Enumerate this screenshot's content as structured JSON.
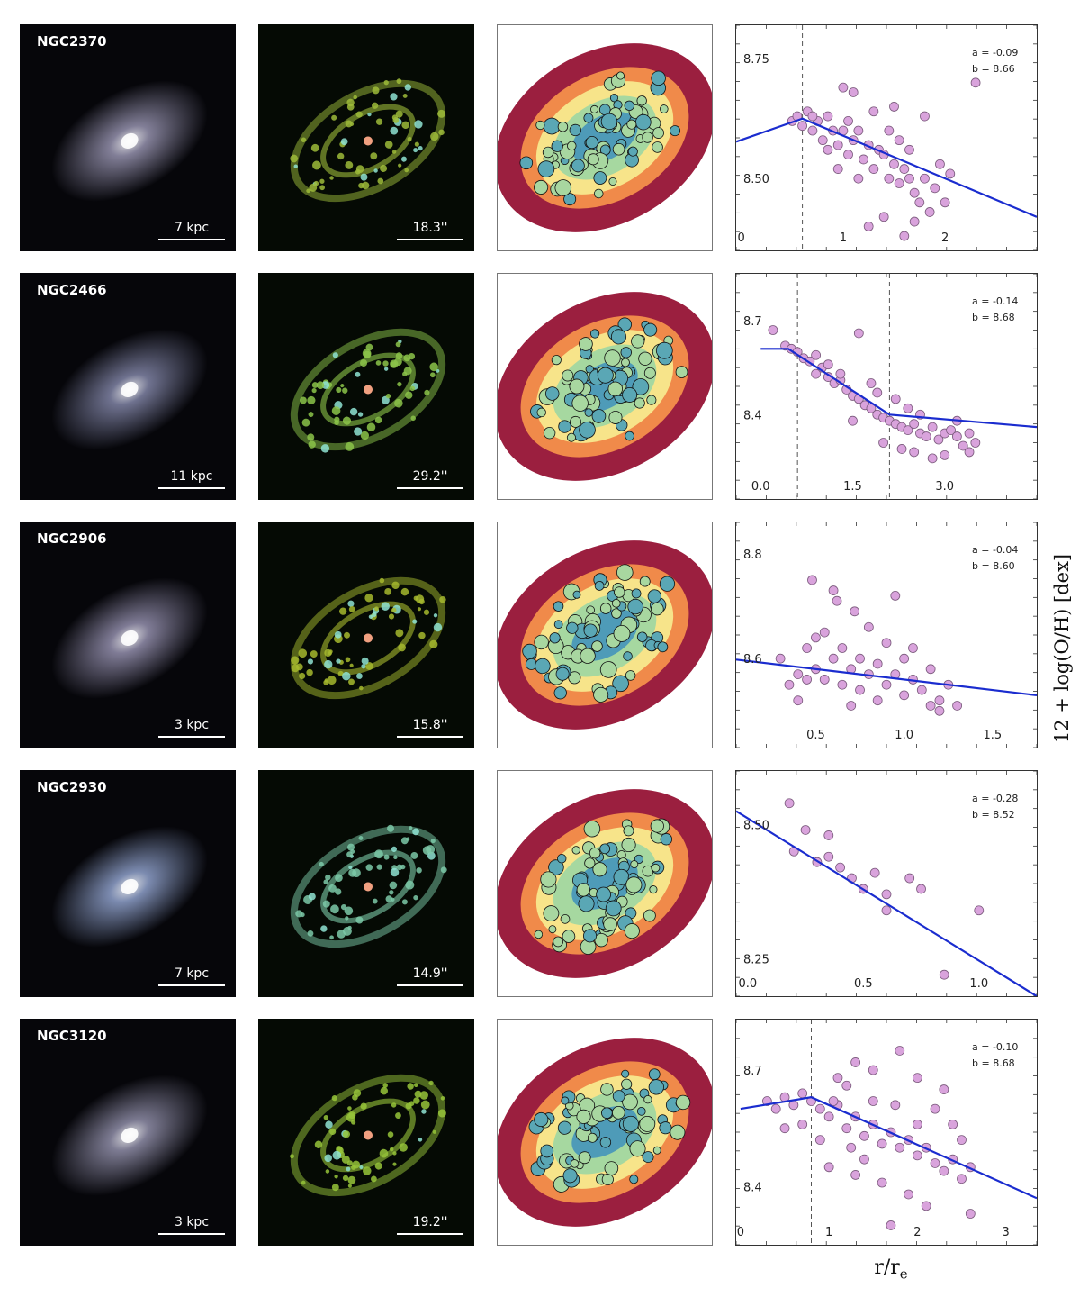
{
  "y_axis_label": "12 + log(O/H) [dex]",
  "x_axis_label": "r/r",
  "x_axis_label_sub": "e",
  "colors": {
    "point_fill": "#d9a3dc",
    "point_edge": "#7a5a7c",
    "fit_line": "#1a2ccf",
    "break_line": "#555555"
  },
  "galaxies": [
    {
      "name": "NGC2370",
      "physical_scale": "7 kpc",
      "angular_scale": "18.3''",
      "rgb_tint": "#a7a3c2",
      "emission_tint": "#9dbb3a",
      "fit_a": "a = -0.09",
      "fit_b": "b = 8.66",
      "chart_ref": 0
    },
    {
      "name": "NGC2466",
      "physical_scale": "11 kpc",
      "angular_scale": "29.2''",
      "rgb_tint": "#8f93b8",
      "emission_tint": "#8cc44a",
      "fit_a": "a = -0.14",
      "fit_b": "b = 8.68",
      "chart_ref": 1
    },
    {
      "name": "NGC2906",
      "physical_scale": "3 kpc",
      "angular_scale": "15.8''",
      "rgb_tint": "#a49fc0",
      "emission_tint": "#a6b92e",
      "fit_a": "a = -0.04",
      "fit_b": "b = 8.60",
      "chart_ref": 2
    },
    {
      "name": "NGC2930",
      "physical_scale": "7 kpc",
      "angular_scale": "14.9''",
      "rgb_tint": "#9fb3e2",
      "emission_tint": "#7cc9a8",
      "fit_a": "a = -0.28",
      "fit_b": "b = 8.52",
      "chart_ref": 3
    },
    {
      "name": "NGC3120",
      "physical_scale": "3 kpc",
      "angular_scale": "19.2''",
      "rgb_tint": "#a19fbc",
      "emission_tint": "#97c43a",
      "fit_a": "a = -0.10",
      "fit_b": "b = 8.68",
      "chart_ref": 4
    }
  ],
  "chart_data": [
    {
      "type": "scatter",
      "title": "NGC2370",
      "xlim": [
        -0.05,
        2.9
      ],
      "ylim": [
        8.35,
        8.82
      ],
      "xticks": [
        "0",
        "1",
        "2"
      ],
      "xtick_values": [
        0,
        1,
        2
      ],
      "yticks": [
        "8.75",
        "8.50"
      ],
      "ytick_values": [
        8.75,
        8.5
      ],
      "break_radii": [
        0.6
      ],
      "fit_line": [
        [
          -0.05,
          8.577
        ],
        [
          0.6,
          8.625
        ],
        [
          2.9,
          8.42
        ]
      ],
      "points": [
        [
          0.5,
          8.62
        ],
        [
          0.55,
          8.63
        ],
        [
          0.6,
          8.61
        ],
        [
          0.65,
          8.64
        ],
        [
          0.7,
          8.6
        ],
        [
          0.75,
          8.62
        ],
        [
          0.8,
          8.58
        ],
        [
          0.85,
          8.63
        ],
        [
          0.9,
          8.6
        ],
        [
          0.95,
          8.57
        ],
        [
          1.0,
          8.6
        ],
        [
          1.05,
          8.55
        ],
        [
          1.1,
          8.58
        ],
        [
          1.15,
          8.6
        ],
        [
          1.2,
          8.54
        ],
        [
          1.25,
          8.57
        ],
        [
          1.3,
          8.52
        ],
        [
          1.35,
          8.56
        ],
        [
          1.4,
          8.55
        ],
        [
          1.45,
          8.5
        ],
        [
          1.5,
          8.53
        ],
        [
          1.55,
          8.49
        ],
        [
          1.6,
          8.52
        ],
        [
          1.65,
          8.5
        ],
        [
          1.7,
          8.47
        ],
        [
          1.75,
          8.45
        ],
        [
          1.8,
          8.5
        ],
        [
          1.85,
          8.43
        ],
        [
          1.9,
          8.48
        ],
        [
          2.0,
          8.45
        ],
        [
          2.05,
          8.51
        ],
        [
          1.0,
          8.69
        ],
        [
          1.1,
          8.68
        ],
        [
          1.5,
          8.65
        ],
        [
          1.8,
          8.63
        ],
        [
          2.3,
          8.7
        ],
        [
          1.25,
          8.4
        ],
        [
          1.4,
          8.42
        ],
        [
          1.6,
          8.38
        ],
        [
          1.7,
          8.41
        ],
        [
          1.95,
          8.53
        ],
        [
          0.95,
          8.52
        ],
        [
          1.05,
          8.62
        ],
        [
          1.3,
          8.64
        ],
        [
          1.15,
          8.5
        ],
        [
          1.55,
          8.58
        ],
        [
          0.7,
          8.63
        ],
        [
          0.85,
          8.56
        ],
        [
          1.45,
          8.6
        ],
        [
          1.65,
          8.56
        ]
      ]
    },
    {
      "type": "scatter",
      "title": "NGC2466",
      "xlim": [
        -0.4,
        4.5
      ],
      "ylim": [
        8.13,
        8.85
      ],
      "xticks": [
        "0.0",
        "1.5",
        "3.0"
      ],
      "xtick_values": [
        0,
        1.5,
        3.0
      ],
      "yticks": [
        "8.7",
        "8.4"
      ],
      "ytick_values": [
        8.7,
        8.4
      ],
      "break_radii": [
        0.6,
        2.1
      ],
      "fit_line": [
        [
          0.0,
          8.61
        ],
        [
          0.45,
          8.61
        ],
        [
          2.1,
          8.4
        ],
        [
          4.5,
          8.36
        ]
      ],
      "points": [
        [
          0.2,
          8.67
        ],
        [
          0.4,
          8.62
        ],
        [
          0.5,
          8.61
        ],
        [
          0.6,
          8.6
        ],
        [
          0.7,
          8.58
        ],
        [
          0.8,
          8.57
        ],
        [
          0.9,
          8.59
        ],
        [
          1.0,
          8.55
        ],
        [
          1.1,
          8.52
        ],
        [
          1.2,
          8.5
        ],
        [
          1.3,
          8.51
        ],
        [
          1.4,
          8.48
        ],
        [
          1.5,
          8.46
        ],
        [
          1.6,
          8.45
        ],
        [
          1.7,
          8.43
        ],
        [
          1.8,
          8.42
        ],
        [
          1.9,
          8.4
        ],
        [
          2.0,
          8.39
        ],
        [
          2.1,
          8.38
        ],
        [
          2.2,
          8.37
        ],
        [
          2.3,
          8.36
        ],
        [
          2.4,
          8.35
        ],
        [
          2.5,
          8.37
        ],
        [
          2.6,
          8.34
        ],
        [
          2.7,
          8.33
        ],
        [
          2.8,
          8.36
        ],
        [
          2.9,
          8.32
        ],
        [
          3.0,
          8.34
        ],
        [
          3.1,
          8.35
        ],
        [
          3.2,
          8.33
        ],
        [
          3.3,
          8.3
        ],
        [
          3.4,
          8.34
        ],
        [
          3.5,
          8.31
        ],
        [
          1.6,
          8.66
        ],
        [
          1.3,
          8.53
        ],
        [
          1.8,
          8.5
        ],
        [
          2.2,
          8.45
        ],
        [
          2.5,
          8.28
        ],
        [
          2.8,
          8.26
        ],
        [
          3.0,
          8.27
        ],
        [
          1.5,
          8.38
        ],
        [
          1.9,
          8.47
        ],
        [
          2.4,
          8.42
        ],
        [
          2.6,
          8.4
        ],
        [
          3.2,
          8.38
        ],
        [
          2.0,
          8.31
        ],
        [
          1.1,
          8.56
        ],
        [
          0.9,
          8.53
        ],
        [
          2.3,
          8.29
        ],
        [
          3.4,
          8.28
        ]
      ]
    },
    {
      "type": "scatter",
      "title": "NGC2906",
      "xlim": [
        0.05,
        1.75
      ],
      "ylim": [
        8.43,
        8.86
      ],
      "xticks": [
        "0.5",
        "1.0",
        "1.5"
      ],
      "xtick_values": [
        0.5,
        1.0,
        1.5
      ],
      "yticks": [
        "8.8",
        "8.6"
      ],
      "ytick_values": [
        8.8,
        8.6
      ],
      "break_radii": [],
      "fit_line": [
        [
          0.05,
          8.598
        ],
        [
          1.75,
          8.53
        ]
      ],
      "points": [
        [
          0.3,
          8.6
        ],
        [
          0.35,
          8.55
        ],
        [
          0.4,
          8.57
        ],
        [
          0.45,
          8.62
        ],
        [
          0.5,
          8.58
        ],
        [
          0.55,
          8.56
        ],
        [
          0.6,
          8.6
        ],
        [
          0.65,
          8.55
        ],
        [
          0.7,
          8.58
        ],
        [
          0.75,
          8.54
        ],
        [
          0.8,
          8.57
        ],
        [
          0.85,
          8.59
        ],
        [
          0.9,
          8.55
        ],
        [
          0.95,
          8.57
        ],
        [
          1.0,
          8.53
        ],
        [
          1.05,
          8.56
        ],
        [
          1.1,
          8.54
        ],
        [
          1.15,
          8.58
        ],
        [
          1.2,
          8.52
        ],
        [
          1.25,
          8.55
        ],
        [
          1.3,
          8.51
        ],
        [
          0.48,
          8.75
        ],
        [
          0.62,
          8.71
        ],
        [
          0.6,
          8.73
        ],
        [
          0.72,
          8.69
        ],
        [
          0.95,
          8.72
        ],
        [
          0.55,
          8.65
        ],
        [
          0.8,
          8.66
        ],
        [
          0.9,
          8.63
        ],
        [
          0.4,
          8.52
        ],
        [
          0.7,
          8.51
        ],
        [
          1.05,
          8.62
        ],
        [
          1.2,
          8.5
        ],
        [
          0.5,
          8.64
        ],
        [
          0.85,
          8.52
        ],
        [
          0.65,
          8.62
        ],
        [
          1.0,
          8.6
        ],
        [
          0.45,
          8.56
        ],
        [
          0.75,
          8.6
        ],
        [
          1.15,
          8.51
        ]
      ]
    },
    {
      "type": "scatter",
      "title": "NGC2930",
      "xlim": [
        -0.05,
        1.25
      ],
      "ylim": [
        8.18,
        8.6
      ],
      "xticks": [
        "0.0",
        "0.5",
        "1.0"
      ],
      "xtick_values": [
        0,
        0.5,
        1.0
      ],
      "yticks": [
        "8.50",
        "8.25"
      ],
      "ytick_values": [
        8.5,
        8.25
      ],
      "break_radii": [],
      "fit_line": [
        [
          -0.05,
          8.525
        ],
        [
          1.25,
          8.18
        ]
      ],
      "points": [
        [
          0.18,
          8.54
        ],
        [
          0.2,
          8.45
        ],
        [
          0.25,
          8.49
        ],
        [
          0.35,
          8.48
        ],
        [
          0.3,
          8.43
        ],
        [
          0.4,
          8.42
        ],
        [
          0.45,
          8.4
        ],
        [
          0.5,
          8.38
        ],
        [
          0.55,
          8.41
        ],
        [
          0.6,
          8.34
        ],
        [
          0.6,
          8.37
        ],
        [
          0.7,
          8.4
        ],
        [
          0.75,
          8.38
        ],
        [
          0.35,
          8.44
        ],
        [
          0.85,
          8.22
        ],
        [
          1.0,
          8.34
        ]
      ]
    },
    {
      "type": "scatter",
      "title": "NGC3120",
      "xlim": [
        -0.05,
        3.35
      ],
      "ylim": [
        8.25,
        8.83
      ],
      "xticks": [
        "0",
        "1",
        "2",
        "3"
      ],
      "xtick_values": [
        0,
        1,
        2,
        3
      ],
      "yticks": [
        "8.7",
        "8.4"
      ],
      "ytick_values": [
        8.7,
        8.4
      ],
      "break_radii": [
        0.8
      ],
      "fit_line": [
        [
          0.0,
          8.6
        ],
        [
          0.8,
          8.63
        ],
        [
          3.35,
          8.37
        ]
      ],
      "points": [
        [
          0.3,
          8.62
        ],
        [
          0.4,
          8.6
        ],
        [
          0.5,
          8.63
        ],
        [
          0.6,
          8.61
        ],
        [
          0.7,
          8.64
        ],
        [
          0.8,
          8.62
        ],
        [
          0.9,
          8.6
        ],
        [
          1.0,
          8.58
        ],
        [
          1.1,
          8.61
        ],
        [
          1.2,
          8.55
        ],
        [
          1.3,
          8.58
        ],
        [
          1.4,
          8.53
        ],
        [
          1.5,
          8.56
        ],
        [
          1.6,
          8.51
        ],
        [
          1.7,
          8.54
        ],
        [
          1.8,
          8.5
        ],
        [
          1.9,
          8.52
        ],
        [
          2.0,
          8.48
        ],
        [
          2.1,
          8.5
        ],
        [
          2.2,
          8.46
        ],
        [
          2.3,
          8.44
        ],
        [
          2.4,
          8.47
        ],
        [
          2.5,
          8.42
        ],
        [
          2.6,
          8.45
        ],
        [
          1.3,
          8.72
        ],
        [
          1.5,
          8.7
        ],
        [
          1.8,
          8.75
        ],
        [
          2.0,
          8.68
        ],
        [
          2.3,
          8.65
        ],
        [
          1.0,
          8.45
        ],
        [
          1.3,
          8.43
        ],
        [
          1.6,
          8.41
        ],
        [
          1.9,
          8.38
        ],
        [
          2.1,
          8.35
        ],
        [
          2.6,
          8.33
        ],
        [
          1.7,
          8.3
        ],
        [
          1.2,
          8.66
        ],
        [
          0.9,
          8.52
        ],
        [
          2.4,
          8.56
        ],
        [
          1.4,
          8.47
        ],
        [
          1.1,
          8.68
        ],
        [
          2.2,
          8.6
        ],
        [
          1.5,
          8.62
        ],
        [
          0.5,
          8.55
        ],
        [
          2.0,
          8.56
        ],
        [
          1.75,
          8.61
        ],
        [
          1.25,
          8.5
        ],
        [
          0.7,
          8.56
        ],
        [
          2.5,
          8.52
        ],
        [
          1.05,
          8.62
        ]
      ]
    }
  ]
}
